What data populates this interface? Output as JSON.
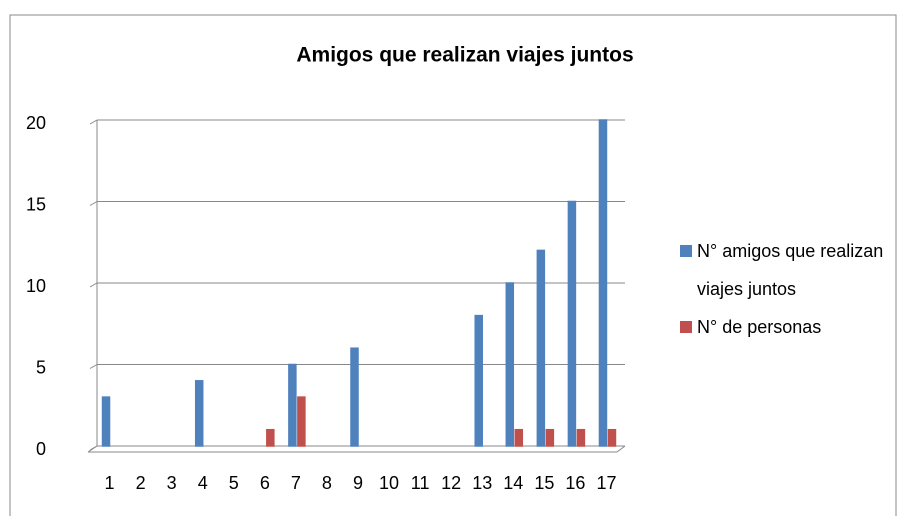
{
  "chart_data": {
    "type": "bar",
    "title": "Amigos que realizan  viajes juntos",
    "categories": [
      "1",
      "2",
      "3",
      "4",
      "5",
      "6",
      "7",
      "8",
      "9",
      "10",
      "11",
      "12",
      "13",
      "14",
      "15",
      "16",
      "17"
    ],
    "series": [
      {
        "name": "N° amigos que realizan viajes juntos",
        "color": "#4f81bd",
        "values": [
          3,
          0,
          0,
          4,
          0,
          0,
          5,
          0,
          6,
          0,
          0,
          0,
          8,
          10,
          12,
          15,
          20
        ]
      },
      {
        "name": "N° de personas",
        "color": "#c0504d",
        "values": [
          0,
          0,
          0,
          0,
          0,
          1,
          3,
          0,
          0,
          0,
          0,
          0,
          0,
          1,
          1,
          1,
          1
        ]
      }
    ],
    "ylim": [
      0,
      20
    ],
    "yticks": [
      0,
      5,
      10,
      15,
      20
    ],
    "grid": true,
    "legend": "right"
  }
}
